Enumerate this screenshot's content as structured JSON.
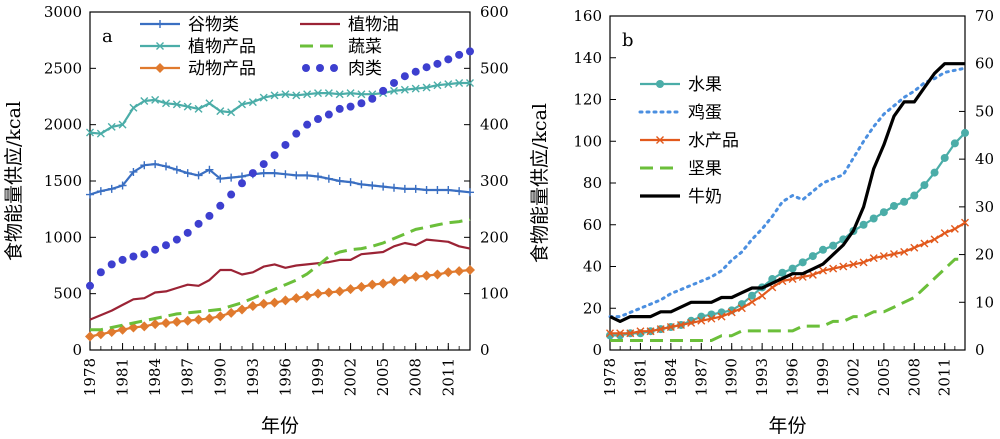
{
  "chart_data": [
    {
      "type": "line",
      "panel_label": "a",
      "xlabel": "年份",
      "ylabel": "食物能量供应/kcal",
      "x": [
        1978,
        1979,
        1980,
        1981,
        1982,
        1983,
        1984,
        1985,
        1986,
        1987,
        1988,
        1989,
        1990,
        1991,
        1992,
        1993,
        1994,
        1995,
        1996,
        1997,
        1998,
        1999,
        2000,
        2001,
        2002,
        2003,
        2004,
        2005,
        2006,
        2007,
        2008,
        2009,
        2010,
        2011,
        2012,
        2013
      ],
      "xticks": [
        "1978",
        "1981",
        "1984",
        "1987",
        "1990",
        "1993",
        "1996",
        "1999",
        "2002",
        "2005",
        "2008",
        "2011"
      ],
      "xlim": [
        1978,
        2013
      ],
      "ylim_left": [
        0,
        3000
      ],
      "yticks_left": [
        "0",
        "500",
        "1000",
        "1500",
        "2000",
        "2500",
        "3000"
      ],
      "ylim_right": [
        0,
        600
      ],
      "yticks_right": [
        "0",
        "100",
        "200",
        "300",
        "400",
        "500",
        "600"
      ],
      "legend_position": "top",
      "series": [
        {
          "name": "谷物类",
          "axis": "left",
          "color": "#3a6fc2",
          "style": "solid",
          "marker": "plus",
          "values": [
            1380,
            1410,
            1430,
            1460,
            1580,
            1640,
            1650,
            1630,
            1600,
            1570,
            1550,
            1600,
            1520,
            1530,
            1540,
            1560,
            1570,
            1570,
            1560,
            1550,
            1550,
            1540,
            1520,
            1500,
            1490,
            1470,
            1460,
            1450,
            1440,
            1430,
            1430,
            1420,
            1420,
            1420,
            1410,
            1400
          ]
        },
        {
          "name": "植物产品",
          "axis": "left",
          "color": "#4bada8",
          "style": "solid",
          "marker": "x",
          "values": [
            1930,
            1920,
            1980,
            2000,
            2150,
            2210,
            2220,
            2190,
            2180,
            2160,
            2140,
            2190,
            2120,
            2110,
            2180,
            2200,
            2240,
            2260,
            2270,
            2260,
            2270,
            2280,
            2280,
            2270,
            2280,
            2270,
            2270,
            2280,
            2300,
            2310,
            2320,
            2330,
            2350,
            2360,
            2370,
            2370
          ]
        },
        {
          "name": "动物产品",
          "axis": "left",
          "color": "#e07a2e",
          "style": "solid",
          "marker": "diamond",
          "values": [
            120,
            140,
            160,
            180,
            200,
            210,
            230,
            240,
            250,
            260,
            270,
            280,
            300,
            330,
            360,
            390,
            410,
            420,
            440,
            460,
            480,
            500,
            510,
            520,
            540,
            560,
            580,
            590,
            610,
            630,
            650,
            660,
            670,
            690,
            700,
            710
          ]
        },
        {
          "name": "植物油",
          "axis": "left",
          "color": "#9b2335",
          "style": "solid",
          "marker": "none",
          "values": [
            270,
            310,
            350,
            400,
            450,
            460,
            510,
            520,
            550,
            580,
            570,
            620,
            710,
            710,
            670,
            690,
            740,
            760,
            730,
            750,
            760,
            770,
            780,
            800,
            800,
            850,
            860,
            870,
            920,
            950,
            930,
            980,
            970,
            960,
            920,
            900
          ]
        },
        {
          "name": "蔬菜",
          "axis": "right",
          "color": "#6bbf3a",
          "style": "dashed",
          "marker": "none",
          "values": [
            36,
            36,
            40,
            44,
            48,
            52,
            56,
            60,
            64,
            66,
            68,
            70,
            72,
            78,
            84,
            92,
            100,
            108,
            116,
            124,
            135,
            150,
            166,
            174,
            178,
            180,
            184,
            190,
            198,
            206,
            214,
            218,
            222,
            226,
            228,
            232
          ]
        },
        {
          "name": "肉类",
          "axis": "right",
          "color": "#3d3fcf",
          "style": "dotted",
          "marker": "dot",
          "values": [
            114,
            138,
            152,
            160,
            166,
            170,
            178,
            186,
            196,
            208,
            224,
            238,
            256,
            276,
            296,
            314,
            330,
            346,
            364,
            384,
            400,
            410,
            418,
            428,
            432,
            438,
            446,
            460,
            474,
            486,
            494,
            502,
            508,
            516,
            524,
            530
          ]
        }
      ]
    },
    {
      "type": "line",
      "panel_label": "b",
      "xlabel": "年份",
      "ylabel": "食物能量供应/kcal",
      "x": [
        1978,
        1979,
        1980,
        1981,
        1982,
        1983,
        1984,
        1985,
        1986,
        1987,
        1988,
        1989,
        1990,
        1991,
        1992,
        1993,
        1994,
        1995,
        1996,
        1997,
        1998,
        1999,
        2000,
        2001,
        2002,
        2003,
        2004,
        2005,
        2006,
        2007,
        2008,
        2009,
        2010,
        2011,
        2012,
        2013
      ],
      "xticks": [
        "1978",
        "1981",
        "1984",
        "1987",
        "1990",
        "1993",
        "1996",
        "1999",
        "2002",
        "2005",
        "2008",
        "2011"
      ],
      "xlim": [
        1978,
        2013
      ],
      "ylim_left": [
        0,
        160
      ],
      "yticks_left": [
        "0",
        "20",
        "40",
        "60",
        "80",
        "100",
        "120",
        "140",
        "160"
      ],
      "ylim_right": [
        0,
        70
      ],
      "yticks_right": [
        "0",
        "10",
        "20",
        "30",
        "40",
        "50",
        "60",
        "70"
      ],
      "legend_position": "left",
      "series": [
        {
          "name": "水果",
          "axis": "left",
          "color": "#4bada8",
          "style": "solid",
          "marker": "dot",
          "values": [
            7,
            7,
            8,
            8,
            9,
            10,
            11,
            12,
            14,
            16,
            17,
            18,
            19,
            22,
            26,
            30,
            34,
            37,
            39,
            42,
            45,
            48,
            50,
            53,
            57,
            60,
            63,
            66,
            69,
            71,
            74,
            79,
            85,
            92,
            99,
            104
          ]
        },
        {
          "name": "鸡蛋",
          "axis": "left",
          "color": "#4b8fe0",
          "style": "dotted",
          "marker": "none",
          "values": [
            16,
            16,
            18,
            20,
            22,
            24,
            27,
            29,
            31,
            33,
            35,
            38,
            43,
            47,
            53,
            58,
            64,
            71,
            74,
            72,
            76,
            80,
            82,
            84,
            92,
            100,
            107,
            113,
            117,
            121,
            124,
            128,
            130,
            133,
            134,
            135
          ]
        },
        {
          "name": "水产品",
          "axis": "left",
          "color": "#e2591c",
          "style": "solid",
          "marker": "x",
          "values": [
            8,
            8,
            8,
            9,
            9,
            10,
            11,
            12,
            13,
            14,
            15,
            16,
            18,
            20,
            23,
            26,
            30,
            33,
            34,
            35,
            36,
            38,
            39,
            40,
            41,
            42,
            44,
            45,
            46,
            47,
            49,
            51,
            53,
            56,
            58,
            61
          ]
        },
        {
          "name": "坚果",
          "axis": "right",
          "color": "#6bbf3a",
          "style": "dashed",
          "marker": "none",
          "values": [
            2,
            2,
            2,
            2,
            2,
            2,
            2,
            2,
            2,
            2,
            2,
            3,
            3,
            4,
            4,
            4,
            4,
            4,
            4,
            5,
            5,
            5,
            6,
            6,
            7,
            7,
            8,
            8,
            9,
            10,
            11,
            13,
            15,
            17,
            19,
            19
          ]
        },
        {
          "name": "牛奶",
          "axis": "right",
          "color": "#000000",
          "style": "solid",
          "marker": "none",
          "values": [
            7,
            6,
            7,
            7,
            7,
            8,
            8,
            9,
            10,
            10,
            10,
            11,
            11,
            12,
            13,
            13,
            14,
            15,
            16,
            16,
            17,
            18,
            20,
            22,
            25,
            30,
            38,
            43,
            49,
            52,
            52,
            55,
            58,
            60,
            60,
            60
          ]
        }
      ]
    }
  ]
}
